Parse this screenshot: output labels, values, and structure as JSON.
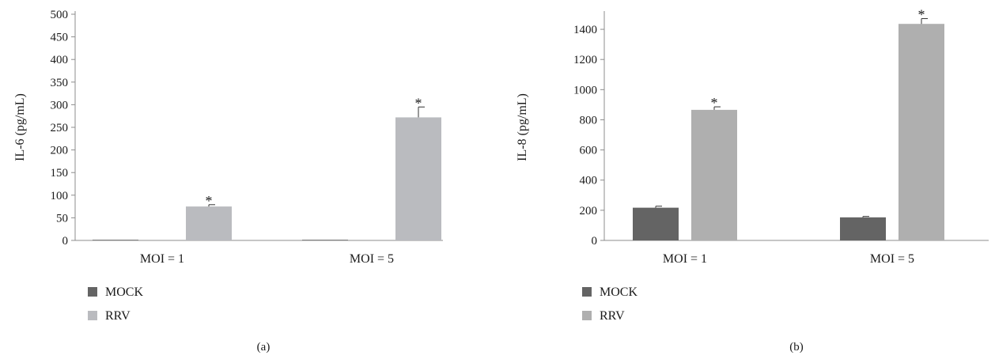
{
  "colors": {
    "mock": "#646464",
    "rrv_a": "#babbbf",
    "rrv_b": "#afafaf",
    "axis": "#8c8c8c",
    "error": "#333333"
  },
  "chart_data": [
    {
      "type": "bar",
      "panel_label": "(a)",
      "ylabel": "IL-6 (pg/mL)",
      "categories": [
        "MOI = 1",
        "MOI = 5"
      ],
      "ylim": [
        0,
        500
      ],
      "yticks": [
        0,
        50,
        100,
        150,
        200,
        250,
        300,
        350,
        400,
        450,
        500
      ],
      "grid": false,
      "legend_position": "bottom-left",
      "series": [
        {
          "name": "MOCK",
          "values": [
            0,
            0
          ],
          "errors": [
            0,
            0
          ],
          "significance": [
            "",
            ""
          ]
        },
        {
          "name": "RRV",
          "values": [
            75,
            272
          ],
          "errors": [
            4,
            23
          ],
          "significance": [
            "*",
            "*"
          ]
        }
      ]
    },
    {
      "type": "bar",
      "panel_label": "(b)",
      "ylabel": "IL-8 (pg/mL)",
      "categories": [
        "MOI = 1",
        "MOI = 5"
      ],
      "ylim": [
        0,
        1500
      ],
      "yticks": [
        0,
        200,
        400,
        600,
        800,
        1000,
        1200,
        1400
      ],
      "grid": false,
      "legend_position": "bottom-left",
      "series": [
        {
          "name": "MOCK",
          "values": [
            217,
            153
          ],
          "errors": [
            10,
            6
          ],
          "significance": [
            "",
            ""
          ]
        },
        {
          "name": "RRV",
          "values": [
            866,
            1436
          ],
          "errors": [
            20,
            35
          ],
          "significance": [
            "*",
            "*"
          ]
        }
      ]
    }
  ]
}
